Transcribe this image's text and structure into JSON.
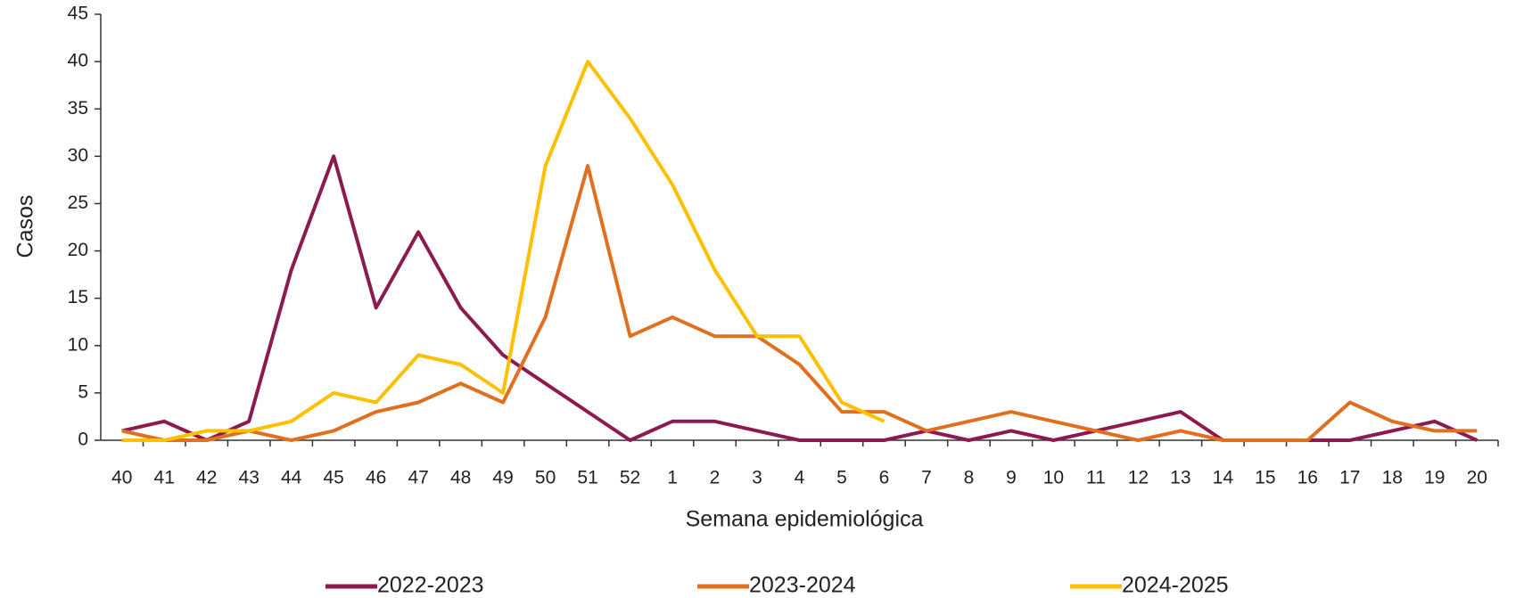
{
  "chart_data": {
    "type": "line",
    "y_label": "Casos",
    "x_label": "Semana epidemiológica",
    "categories": [
      "40",
      "41",
      "42",
      "43",
      "44",
      "45",
      "46",
      "47",
      "48",
      "49",
      "50",
      "51",
      "52",
      "1",
      "2",
      "3",
      "4",
      "5",
      "6",
      "7",
      "8",
      "9",
      "10",
      "11",
      "12",
      "13",
      "14",
      "15",
      "16",
      "17",
      "18",
      "19",
      "20"
    ],
    "series": [
      {
        "name": "2022-2023",
        "color": "#8b1a4f",
        "values": [
          1,
          2,
          0,
          2,
          18,
          30,
          14,
          22,
          14,
          9,
          6,
          3,
          0,
          2,
          2,
          1,
          0,
          0,
          0,
          1,
          0,
          1,
          0,
          1,
          2,
          3,
          0,
          0,
          0,
          0,
          1,
          2,
          0
        ]
      },
      {
        "name": "2023-2024",
        "color": "#e07020",
        "values": [
          1,
          0,
          0,
          1,
          0,
          1,
          3,
          4,
          6,
          4,
          13,
          29,
          11,
          13,
          11,
          11,
          8,
          3,
          3,
          1,
          2,
          3,
          2,
          1,
          0,
          1,
          0,
          0,
          0,
          4,
          2,
          1,
          1
        ]
      },
      {
        "name": "2024-2025",
        "color": "#ffc000",
        "values": [
          0,
          0,
          1,
          1,
          2,
          5,
          4,
          9,
          8,
          5,
          29,
          40,
          34,
          27,
          18,
          11,
          11,
          4,
          2,
          null,
          null,
          null,
          null,
          null,
          null,
          null,
          null,
          null,
          null,
          null,
          null,
          null,
          null
        ]
      }
    ],
    "ylim": [
      0,
      45
    ],
    "yticks": [
      0,
      5,
      10,
      15,
      20,
      25,
      30,
      35,
      40,
      45
    ],
    "legend": "bottom"
  }
}
